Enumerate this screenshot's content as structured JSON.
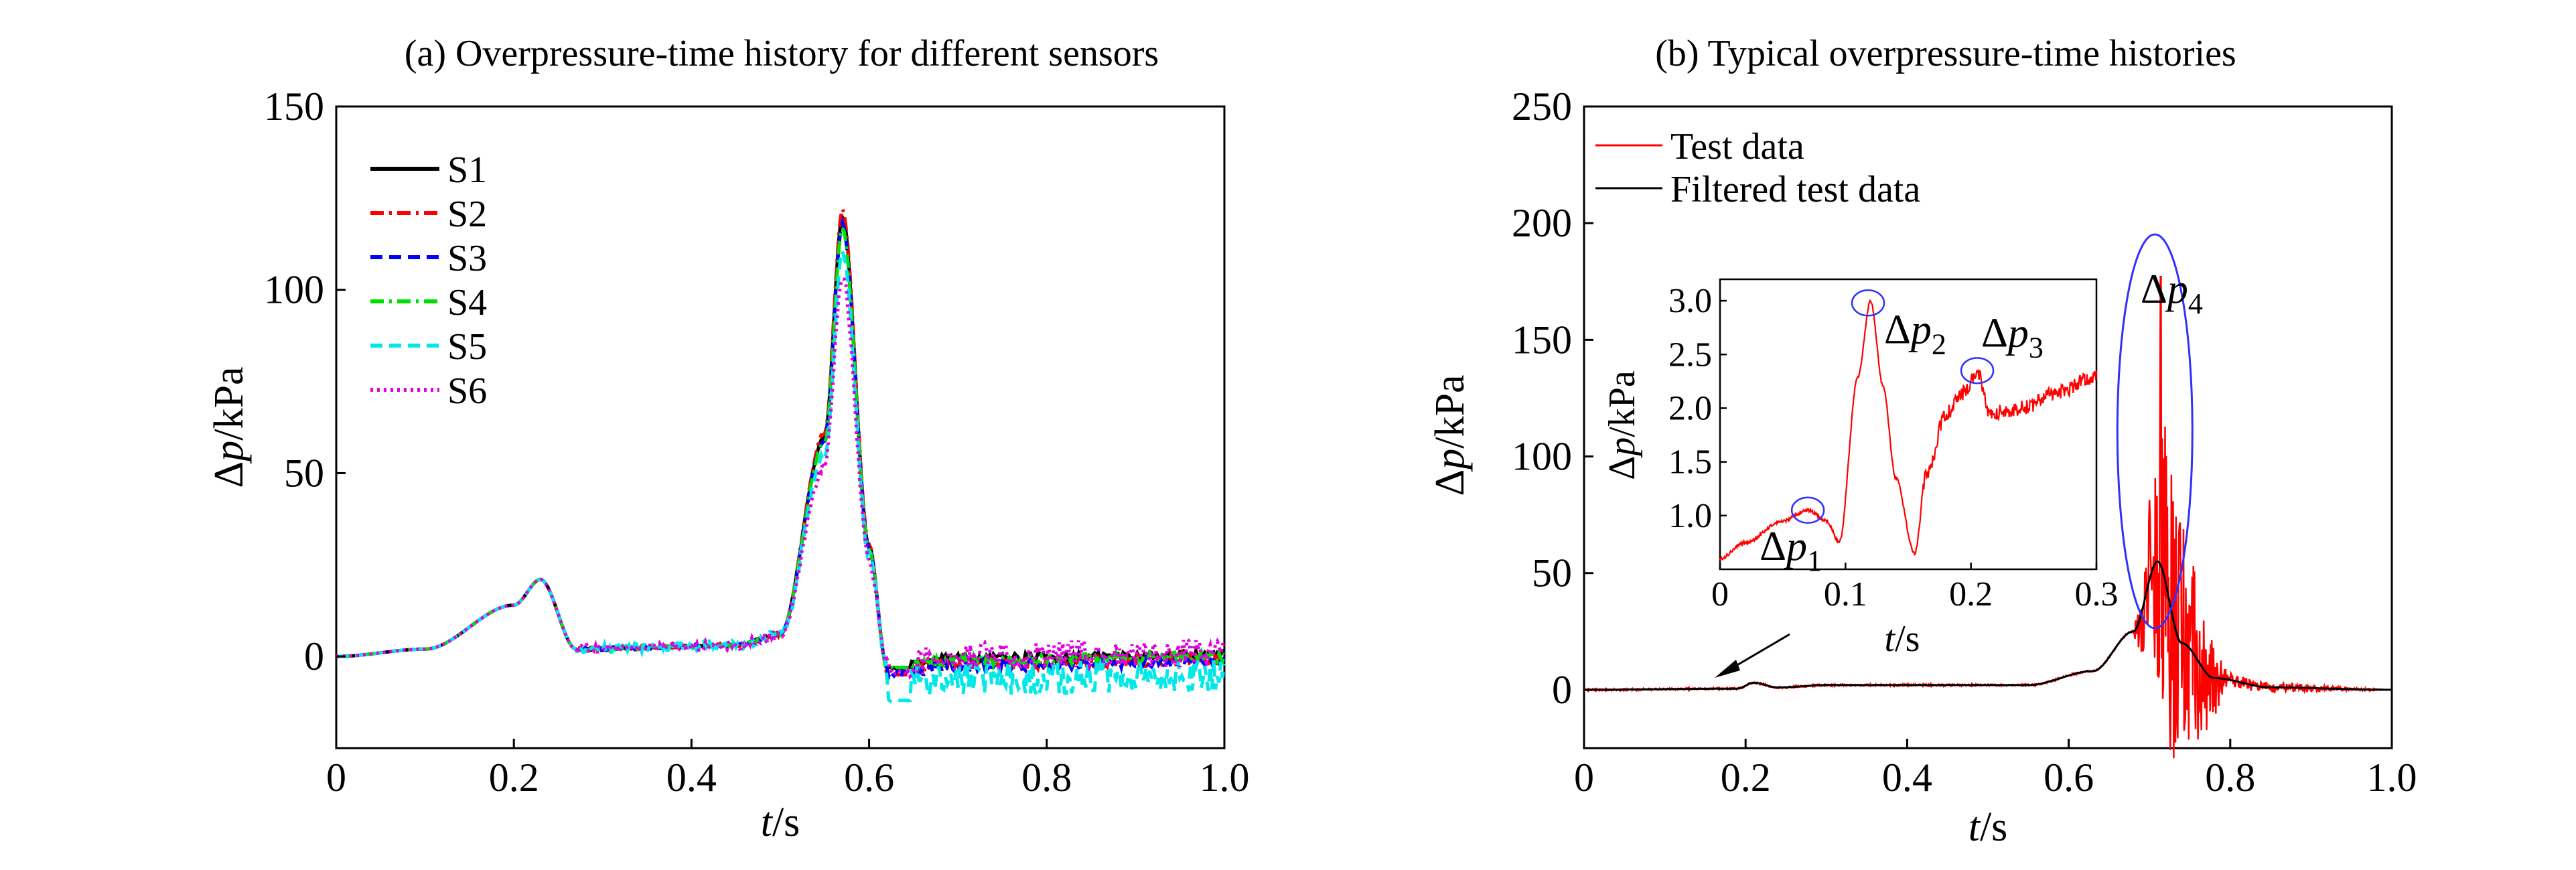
{
  "chart_data": [
    {
      "type": "line",
      "title": "(a) Overpressure-time history for different sensors",
      "xlabel": {
        "var": "t",
        "unit": "/s"
      },
      "ylabel": {
        "delta": "Δ",
        "var": "p",
        "unit": "/kPa"
      },
      "xlim": [
        0,
        1.0
      ],
      "ylim": [
        -25,
        150
      ],
      "xticks": [
        0,
        0.2,
        0.4,
        0.6,
        0.8,
        1.0
      ],
      "xtick_labels": [
        "0",
        "0.2",
        "0.4",
        "0.6",
        "0.8",
        "1.0"
      ],
      "yticks": [
        0,
        50,
        100,
        150
      ],
      "ytick_labels": [
        "0",
        "50",
        "100",
        "150"
      ],
      "grid": false,
      "legend_position": "top-left",
      "series": [
        {
          "name": "S1",
          "color": "#000000",
          "dash": "solid",
          "peak": 120,
          "noise": 1.2,
          "tail": 0.5,
          "min": -3
        },
        {
          "name": "S2",
          "color": "#ff0000",
          "dash": "dashdot",
          "peak": 122,
          "noise": 1.8,
          "tail": -1,
          "min": -5
        },
        {
          "name": "S3",
          "color": "#0000ff",
          "dash": "dashed",
          "peak": 118,
          "noise": 1.5,
          "tail": -1.5,
          "min": -4
        },
        {
          "name": "S4",
          "color": "#00e000",
          "dash": "dashdot",
          "peak": 117,
          "noise": 1.4,
          "tail": 0,
          "min": -3
        },
        {
          "name": "S5",
          "color": "#00e8e8",
          "dash": "dashed",
          "peak": 110,
          "noise": 4.5,
          "tail": -5,
          "min": -12
        },
        {
          "name": "S6",
          "color": "#e000e0",
          "dash": "dotted",
          "peak": 104,
          "noise": 4.0,
          "tail": 1,
          "min": -4
        }
      ],
      "key_points": {
        "x": [
          0,
          0.1,
          0.2,
          0.23,
          0.27,
          0.45,
          0.5,
          0.55,
          0.57,
          0.6,
          0.62,
          0.7,
          1.0
        ],
        "y": [
          0,
          2,
          14,
          21,
          2,
          3,
          6,
          60,
          120,
          30,
          -3,
          -1,
          0
        ]
      }
    },
    {
      "type": "line",
      "title": "(b) Typical overpressure-time histories",
      "xlabel": {
        "var": "t",
        "unit": "/s"
      },
      "ylabel": {
        "delta": "Δ",
        "var": "p",
        "unit": "/kPa"
      },
      "xlim": [
        0,
        1.0
      ],
      "ylim": [
        -25,
        250
      ],
      "xticks": [
        0,
        0.2,
        0.4,
        0.6,
        0.8,
        1.0
      ],
      "xtick_labels": [
        "0",
        "0.2",
        "0.4",
        "0.6",
        "0.8",
        "1.0"
      ],
      "yticks": [
        0,
        50,
        100,
        150,
        200,
        250
      ],
      "ytick_labels": [
        "0",
        "50",
        "100",
        "150",
        "200",
        "250"
      ],
      "grid": false,
      "legend_position": "top-left",
      "series": [
        {
          "name": "Test data",
          "color": "#ff0000",
          "dash": "solid"
        },
        {
          "name": "Filtered test data",
          "color": "#000000",
          "dash": "solid"
        }
      ],
      "key_points": {
        "x": [
          0,
          0.19,
          0.21,
          0.24,
          0.3,
          0.55,
          0.63,
          0.68,
          0.71,
          0.74,
          0.78,
          0.85,
          1.0
        ],
        "y": [
          0,
          0.5,
          3,
          1,
          2,
          2,
          8,
          25,
          55,
          20,
          5,
          1,
          0
        ]
      },
      "peak_raw": 177,
      "annotation": {
        "label": "Δp",
        "sub": "4",
        "x": 0.71
      },
      "inset": {
        "xlim": [
          0,
          0.3
        ],
        "ylim": [
          0.5,
          3.2
        ],
        "xticks": [
          0,
          0.1,
          0.2,
          0.3
        ],
        "xtick_labels": [
          "0",
          "0.1",
          "0.2",
          "0.3"
        ],
        "yticks": [
          1.0,
          1.5,
          2.0,
          2.5,
          3.0
        ],
        "ytick_labels": [
          "1.0",
          "1.5",
          "2.0",
          "2.5",
          "3.0"
        ],
        "xlabel": {
          "var": "t",
          "unit": "/s"
        },
        "ylabel": {
          "delta": "Δ",
          "var": "p",
          "unit": "/kPa"
        },
        "x": [
          0,
          0.02,
          0.05,
          0.07,
          0.085,
          0.095,
          0.11,
          0.12,
          0.13,
          0.14,
          0.155,
          0.165,
          0.18,
          0.195,
          0.205,
          0.215,
          0.24,
          0.27,
          0.3
        ],
        "y": [
          0.6,
          0.75,
          0.95,
          1.05,
          0.95,
          0.75,
          2.3,
          3.0,
          2.2,
          1.35,
          0.65,
          1.4,
          1.95,
          2.15,
          2.35,
          1.95,
          2.0,
          2.15,
          2.3
        ],
        "markers": [
          {
            "label": "Δp",
            "sub": "1",
            "x": 0.07,
            "y": 1.05
          },
          {
            "label": "Δp",
            "sub": "2",
            "x": 0.118,
            "y": 2.98
          },
          {
            "label": "Δp",
            "sub": "3",
            "x": 0.205,
            "y": 2.35
          }
        ]
      }
    }
  ]
}
